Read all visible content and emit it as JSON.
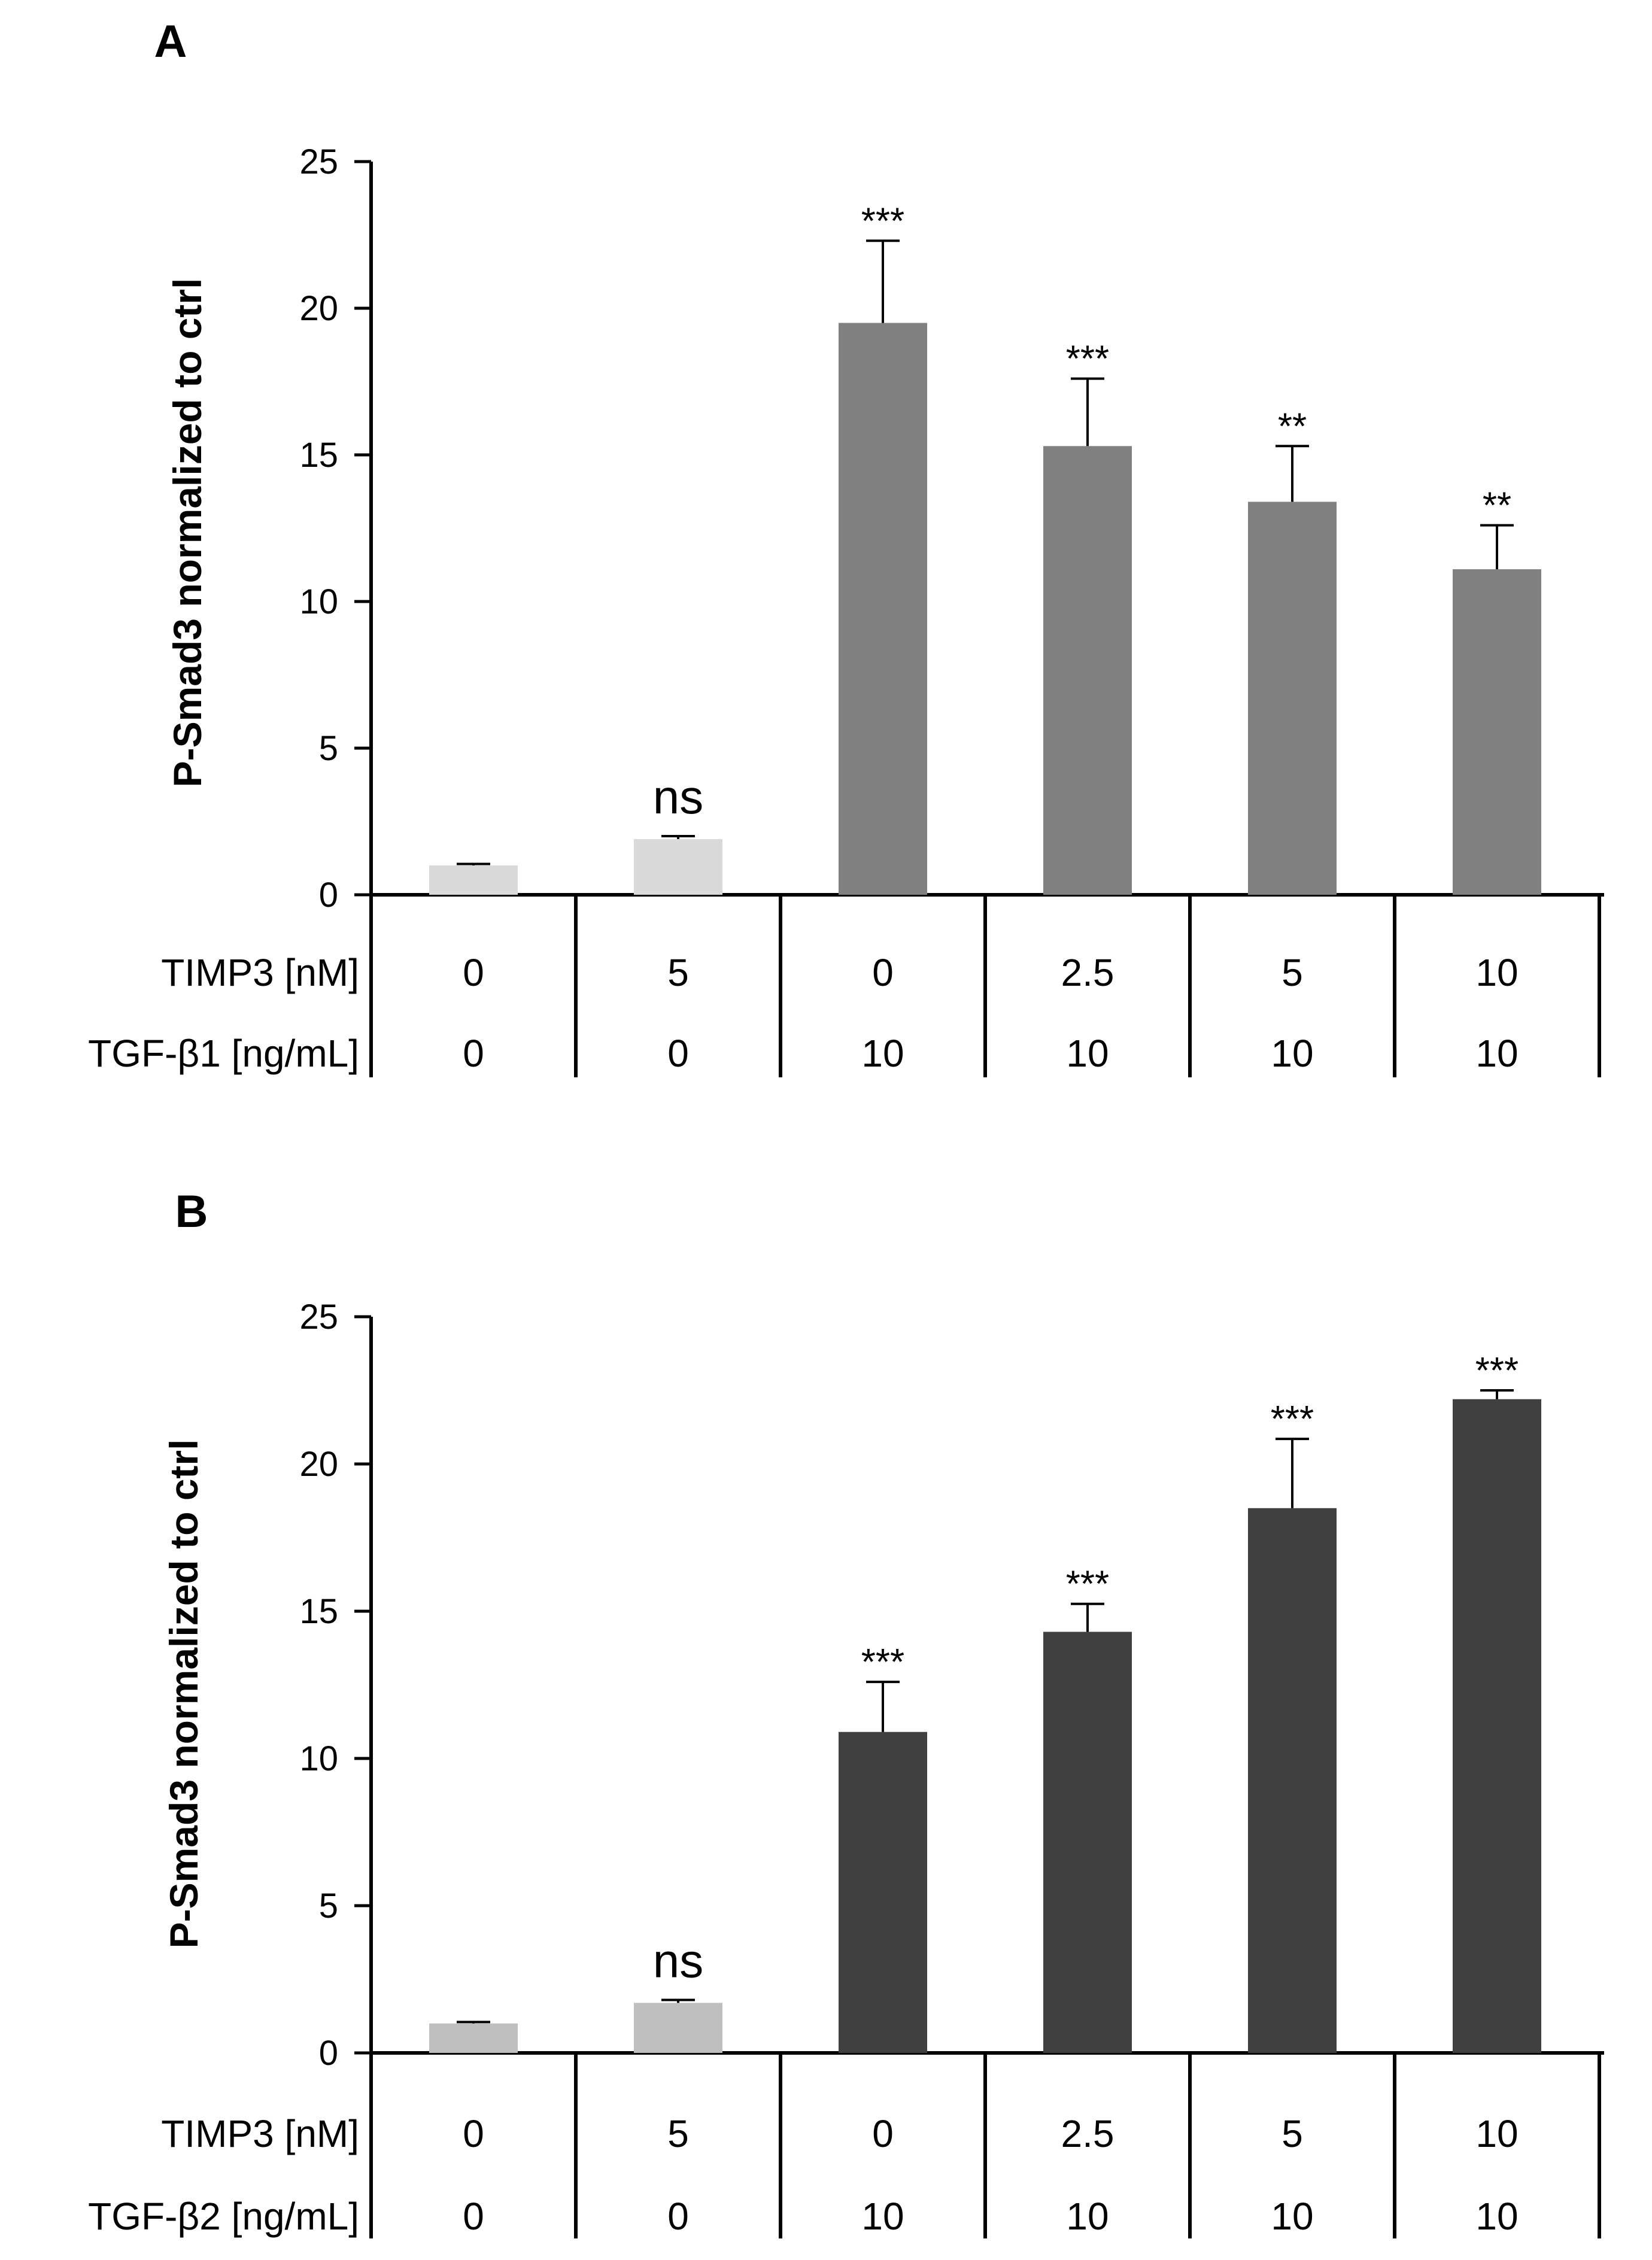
{
  "chart_data": [
    {
      "type": "bar",
      "panel": "A",
      "ylabel": "P-Smad3 normalized to ctrl",
      "ylim": [
        0,
        25
      ],
      "yticks": [
        0,
        5,
        10,
        15,
        20,
        25
      ],
      "grid": false,
      "rows": [
        {
          "label": "TIMP3 [nM]",
          "values": [
            "0",
            "5",
            "0",
            "2.5",
            "5",
            "10"
          ]
        },
        {
          "label": "TGF-β1 [ng/mL]",
          "values": [
            "0",
            "0",
            "10",
            "10",
            "10",
            "10"
          ]
        }
      ],
      "values": [
        1.0,
        1.9,
        19.5,
        15.3,
        13.4,
        11.1
      ],
      "errors": [
        0.05,
        0.1,
        2.8,
        2.3,
        1.9,
        1.5
      ],
      "significance": [
        "",
        "ns",
        "***",
        "***",
        "**",
        "**"
      ],
      "colors": [
        "#d9d9d9",
        "#d9d9d9",
        "#808080",
        "#808080",
        "#808080",
        "#808080"
      ]
    },
    {
      "type": "bar",
      "panel": "B",
      "ylabel": "P-Smad3 normalized to ctrl",
      "ylim": [
        0,
        25
      ],
      "yticks": [
        0,
        5,
        10,
        15,
        20,
        25
      ],
      "grid": false,
      "rows": [
        {
          "label": "TIMP3 [nM]",
          "values": [
            "0",
            "5",
            "0",
            "2.5",
            "5",
            "10"
          ]
        },
        {
          "label": "TGF-β2 [ng/mL]",
          "values": [
            "0",
            "0",
            "10",
            "10",
            "10",
            "10"
          ]
        }
      ],
      "values": [
        1.0,
        1.7,
        10.9,
        14.3,
        18.5,
        22.2
      ],
      "errors": [
        0.05,
        0.1,
        1.7,
        0.95,
        2.35,
        0.3
      ],
      "significance": [
        "",
        "ns",
        "***",
        "***",
        "***",
        "***"
      ],
      "colors": [
        "#bfbfbf",
        "#bfbfbf",
        "#404040",
        "#404040",
        "#404040",
        "#404040"
      ]
    }
  ]
}
